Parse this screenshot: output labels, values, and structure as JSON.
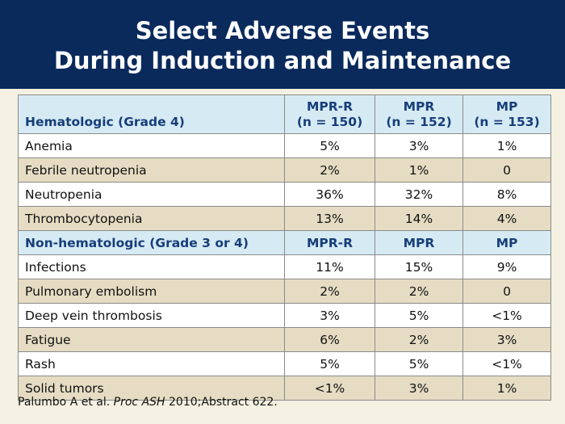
{
  "title": {
    "line1": "Select Adverse Events",
    "line2": "During Induction and Maintenance"
  },
  "table": {
    "section1": {
      "label": "Hematologic (Grade 4)",
      "cols": [
        {
          "name": "MPR-R",
          "n": "(n = 150)"
        },
        {
          "name": "MPR",
          "n": "(n = 152)"
        },
        {
          "name": "MP",
          "n": "(n = 153)"
        }
      ],
      "rows": [
        {
          "event": "Anemia",
          "v": [
            "5%",
            "3%",
            "1%"
          ]
        },
        {
          "event": "Febrile neutropenia",
          "v": [
            "2%",
            "1%",
            "0"
          ]
        },
        {
          "event": "Neutropenia",
          "v": [
            "36%",
            "32%",
            "8%"
          ]
        },
        {
          "event": "Thrombocytopenia",
          "v": [
            "13%",
            "14%",
            "4%"
          ]
        }
      ]
    },
    "section2": {
      "label": "Non-hematologic (Grade 3 or 4)",
      "cols": [
        "MPR-R",
        "MPR",
        "MP"
      ],
      "rows": [
        {
          "event": "Infections",
          "v": [
            "11%",
            "15%",
            "9%"
          ]
        },
        {
          "event": "Pulmonary embolism",
          "v": [
            "2%",
            "2%",
            "0"
          ]
        },
        {
          "event": "Deep vein thrombosis",
          "v": [
            "3%",
            "5%",
            "<1%"
          ]
        },
        {
          "event": "Fatigue",
          "v": [
            "6%",
            "2%",
            "3%"
          ]
        },
        {
          "event": "Rash",
          "v": [
            "5%",
            "5%",
            "<1%"
          ]
        },
        {
          "event": "Solid tumors",
          "v": [
            "<1%",
            "3%",
            "1%"
          ]
        }
      ]
    }
  },
  "citation": {
    "authors": "Palumbo A et al.",
    "journal": "Proc ASH",
    "rest": "2010;Abstract 622."
  },
  "colors": {
    "title_bg": "#0a2a5c",
    "header_bg": "#d6eaf4",
    "row_tan": "#e5dcc3",
    "row_white": "#ffffff",
    "page_bg": "#f4f1e2",
    "header_text": "#173e7a"
  }
}
